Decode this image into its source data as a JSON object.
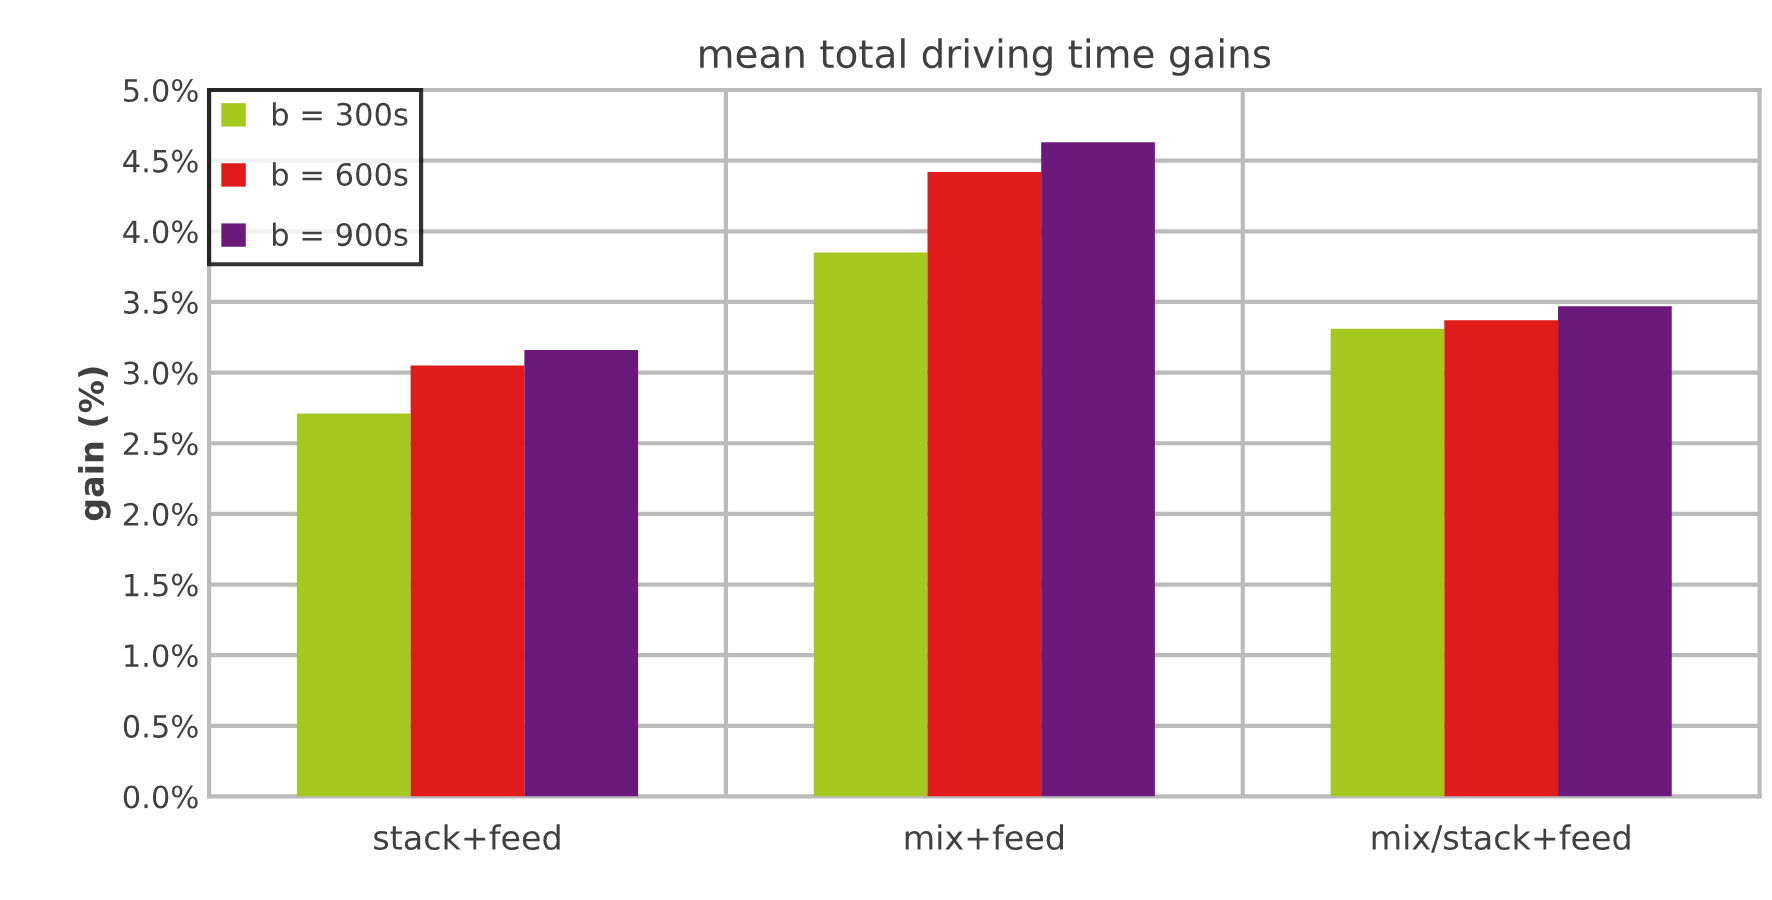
{
  "chart_data": {
    "type": "bar",
    "title": "mean total driving time gains",
    "ylabel": "gain (%)",
    "categories": [
      "stack+feed",
      "mix+feed",
      "mix/stack+feed"
    ],
    "series": [
      {
        "name": "b = 300s",
        "color": "#a5c81e",
        "values": [
          2.71,
          3.85,
          3.31
        ]
      },
      {
        "name": "b = 600s",
        "color": "#e01b1b",
        "values": [
          3.05,
          4.42,
          3.37
        ]
      },
      {
        "name": "b = 900s",
        "color": "#6c197c",
        "values": [
          3.16,
          4.63,
          3.47
        ]
      }
    ],
    "ylim": [
      0,
      5
    ],
    "yticks": [
      {
        "value": 0,
        "label": "0.0%"
      },
      {
        "value": 0.5,
        "label": "0.5%"
      },
      {
        "value": 1,
        "label": "1.0%"
      },
      {
        "value": 1.5,
        "label": "1.5%"
      },
      {
        "value": 2,
        "label": "2.0%"
      },
      {
        "value": 2.5,
        "label": "2.5%"
      },
      {
        "value": 3,
        "label": "3.0%"
      },
      {
        "value": 3.5,
        "label": "3.5%"
      },
      {
        "value": 4,
        "label": "4.0%"
      },
      {
        "value": 4.5,
        "label": "4.5%"
      },
      {
        "value": 5,
        "label": "5.0%"
      }
    ],
    "grid": true,
    "legend": "top left"
  }
}
